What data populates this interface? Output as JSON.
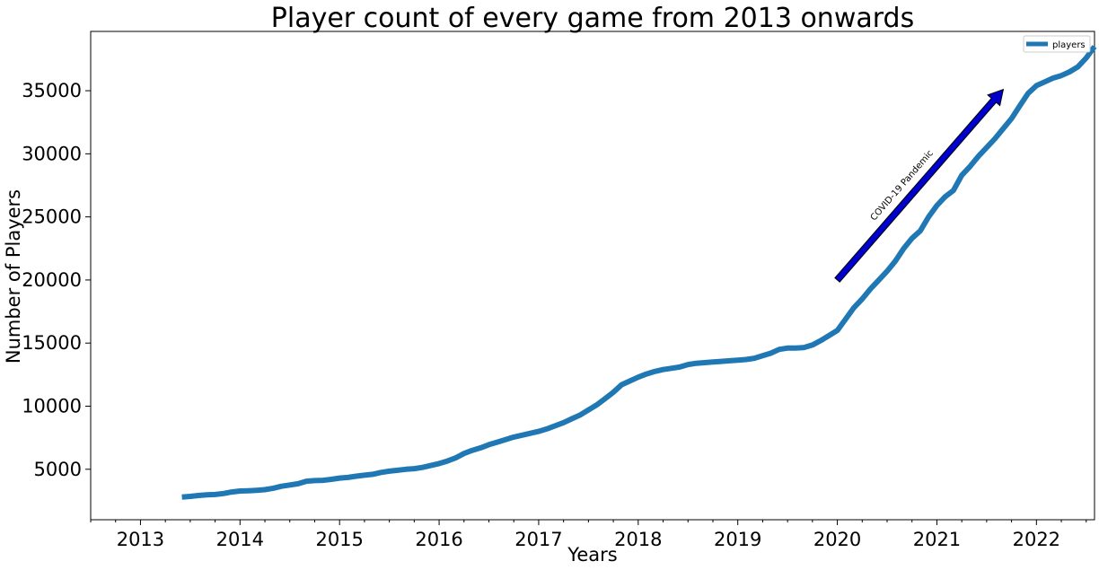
{
  "chart_data": {
    "type": "line",
    "title": "Player count of every game from 2013 onwards",
    "xlabel": "Years",
    "ylabel": "Number of Players",
    "xlim": [
      "2012-07-01",
      "2022-08-01"
    ],
    "ylim": [
      1000,
      39700
    ],
    "x_ticks": [
      "2013",
      "2014",
      "2015",
      "2016",
      "2017",
      "2018",
      "2019",
      "2020",
      "2021",
      "2022"
    ],
    "y_ticks": [
      5000,
      10000,
      15000,
      20000,
      25000,
      30000,
      35000
    ],
    "grid": false,
    "legend": {
      "position": "top-right",
      "entries": [
        "players"
      ]
    },
    "series": [
      {
        "name": "players",
        "color": "#1f77b4",
        "x": [
          "2013-06",
          "2013-07",
          "2013-08",
          "2013-09",
          "2013-10",
          "2013-11",
          "2013-12",
          "2014-01",
          "2014-02",
          "2014-03",
          "2014-04",
          "2014-05",
          "2014-06",
          "2014-07",
          "2014-08",
          "2014-09",
          "2014-10",
          "2014-11",
          "2014-12",
          "2015-01",
          "2015-02",
          "2015-03",
          "2015-04",
          "2015-05",
          "2015-06",
          "2015-07",
          "2015-08",
          "2015-09",
          "2015-10",
          "2015-11",
          "2015-12",
          "2016-01",
          "2016-02",
          "2016-03",
          "2016-04",
          "2016-05",
          "2016-06",
          "2016-07",
          "2016-08",
          "2016-09",
          "2016-10",
          "2016-11",
          "2016-12",
          "2017-01",
          "2017-02",
          "2017-03",
          "2017-04",
          "2017-05",
          "2017-06",
          "2017-07",
          "2017-08",
          "2017-09",
          "2017-10",
          "2017-11",
          "2017-12",
          "2018-01",
          "2018-02",
          "2018-03",
          "2018-04",
          "2018-05",
          "2018-06",
          "2018-07",
          "2018-08",
          "2018-09",
          "2018-10",
          "2018-11",
          "2018-12",
          "2019-01",
          "2019-02",
          "2019-03",
          "2019-04",
          "2019-05",
          "2019-06",
          "2019-07",
          "2019-08",
          "2019-09",
          "2019-10",
          "2019-11",
          "2019-12",
          "2020-01",
          "2020-02",
          "2020-03",
          "2020-04",
          "2020-05",
          "2020-06",
          "2020-07",
          "2020-08",
          "2020-09",
          "2020-10",
          "2020-11",
          "2020-12",
          "2021-01",
          "2021-02",
          "2021-03",
          "2021-04",
          "2021-05",
          "2021-06",
          "2021-07",
          "2021-08",
          "2021-09",
          "2021-10",
          "2021-11",
          "2021-12",
          "2022-01",
          "2022-02",
          "2022-03",
          "2022-04",
          "2022-05",
          "2022-06",
          "2022-07",
          "2022-08"
        ],
        "y": [
          2800,
          2850,
          2920,
          2980,
          3000,
          3080,
          3200,
          3280,
          3300,
          3330,
          3380,
          3500,
          3650,
          3750,
          3850,
          4050,
          4100,
          4120,
          4200,
          4300,
          4350,
          4450,
          4530,
          4600,
          4750,
          4850,
          4920,
          5000,
          5050,
          5150,
          5300,
          5450,
          5650,
          5900,
          6250,
          6500,
          6700,
          6950,
          7150,
          7350,
          7550,
          7700,
          7850,
          8000,
          8200,
          8450,
          8700,
          9000,
          9300,
          9700,
          10100,
          10600,
          11100,
          11700,
          12000,
          12300,
          12550,
          12750,
          12900,
          13000,
          13100,
          13300,
          13400,
          13450,
          13500,
          13550,
          13600,
          13650,
          13700,
          13800,
          14000,
          14200,
          14500,
          14600,
          14600,
          14650,
          14850,
          15200,
          15600,
          16000,
          16900,
          17800,
          18500,
          19300,
          20000,
          20700,
          21500,
          22500,
          23300,
          23900,
          25000,
          25900,
          26600,
          27100,
          28300,
          29000,
          29800,
          30500,
          31200,
          32000,
          32800,
          33800,
          34800,
          35400,
          35700,
          36000,
          36200,
          36500,
          36900,
          37600,
          38500
        ]
      }
    ],
    "annotations": [
      {
        "text": "COVID-19 Pandemic",
        "arrow_from": [
          "2020-01",
          20000
        ],
        "arrow_to": [
          "2021-09",
          35100
        ],
        "arrow_color": "#0000cc"
      }
    ]
  }
}
